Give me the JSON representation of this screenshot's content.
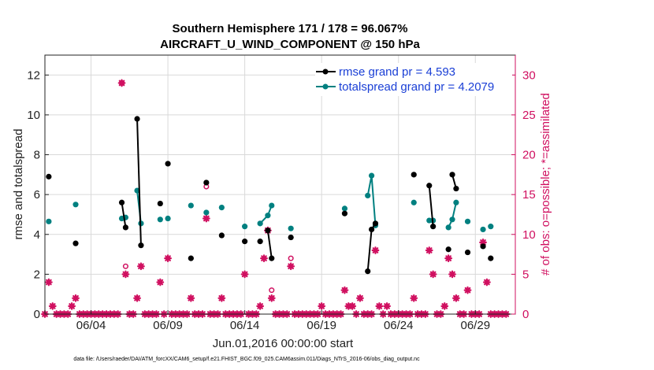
{
  "chart_data": {
    "type": "line",
    "title": [
      "Southern Hemisphere 171 / 178 = 96.067%",
      "AIRCRAFT_U_WIND_COMPONENT @ 150 hPa"
    ],
    "xlabel": "Jun.01,2016 00:00:00 start",
    "ylabel": "rmse and totalspread",
    "ylabel_right": "# of obs: o=possible; *=assimilated",
    "xlim": [
      1,
      31.6
    ],
    "ylim": [
      0,
      13
    ],
    "ylim_right": [
      0,
      32.5
    ],
    "x_tick_labels": [
      "06/04",
      "06/09",
      "06/14",
      "06/19",
      "06/24",
      "06/29"
    ],
    "x_tick_values": [
      4,
      9,
      14,
      19,
      24,
      29
    ],
    "y_ticks": [
      0,
      2,
      4,
      6,
      8,
      10,
      12
    ],
    "y_ticks_right": [
      0,
      5,
      10,
      15,
      20,
      25,
      30
    ],
    "footnote": "data file: /Users/raeder/DAI/ATM_forcXX/CAM6_setup/f.e21.FHIST_BGC.f09_025.CAM6assim.011/Diags_NTrS_2016-06/obs_diag_output.nc",
    "colors": {
      "rmse": "#000000",
      "spread": "#008080",
      "obs": "#d01060"
    },
    "series": [
      {
        "name": "rmse grand pr = 4.593",
        "key": "rmse",
        "points": [
          [
            1.25,
            6.9
          ],
          [
            3,
            3.55
          ],
          [
            6,
            5.6
          ],
          [
            6.25,
            4.35
          ],
          [
            7,
            9.8
          ],
          [
            7.25,
            3.45
          ],
          [
            8.5,
            5.55
          ],
          [
            9,
            7.55
          ],
          [
            10.5,
            2.8
          ],
          [
            11.5,
            6.6
          ],
          [
            12.5,
            3.95
          ],
          [
            14,
            3.65
          ],
          [
            15,
            3.65
          ],
          [
            15.5,
            4.2
          ],
          [
            15.75,
            2.8
          ],
          [
            17,
            3.85
          ],
          [
            20.5,
            5.05
          ],
          [
            22,
            2.15
          ],
          [
            22.25,
            4.25
          ],
          [
            22.5,
            4.55
          ],
          [
            25,
            7.0
          ],
          [
            26,
            6.45
          ],
          [
            26.25,
            4.4
          ],
          [
            27.25,
            3.25
          ],
          [
            27.5,
            7.0
          ],
          [
            27.75,
            6.3
          ],
          [
            28.5,
            3.1
          ],
          [
            29.5,
            3.4
          ],
          [
            30,
            2.8
          ]
        ],
        "segments": [
          [
            [
              6,
              5.6
            ],
            [
              6.25,
              4.35
            ]
          ],
          [
            [
              7,
              9.8
            ],
            [
              7.25,
              3.45
            ]
          ],
          [
            [
              15.5,
              4.2
            ],
            [
              15.75,
              2.8
            ]
          ],
          [
            [
              22,
              2.15
            ],
            [
              22.25,
              4.25
            ],
            [
              22.5,
              4.55
            ]
          ],
          [
            [
              26,
              6.45
            ],
            [
              26.25,
              4.4
            ]
          ],
          [
            [
              27.5,
              7.0
            ],
            [
              27.75,
              6.3
            ]
          ]
        ]
      },
      {
        "name": "totalspread grand pr = 4.2079",
        "key": "spread",
        "points": [
          [
            1.25,
            4.65
          ],
          [
            3,
            5.5
          ],
          [
            6,
            4.8
          ],
          [
            6.25,
            4.85
          ],
          [
            7,
            6.2
          ],
          [
            7.25,
            4.55
          ],
          [
            8.5,
            4.75
          ],
          [
            9,
            4.8
          ],
          [
            10.5,
            5.45
          ],
          [
            11.5,
            5.1
          ],
          [
            12.5,
            5.35
          ],
          [
            14,
            4.4
          ],
          [
            15,
            4.55
          ],
          [
            15.5,
            4.95
          ],
          [
            15.75,
            5.45
          ],
          [
            17,
            4.3
          ],
          [
            20.5,
            5.3
          ],
          [
            22,
            5.95
          ],
          [
            22.25,
            6.95
          ],
          [
            22.5,
            4.45
          ],
          [
            25,
            5.6
          ],
          [
            26,
            4.7
          ],
          [
            26.25,
            4.7
          ],
          [
            27.25,
            4.35
          ],
          [
            27.5,
            4.75
          ],
          [
            27.75,
            5.6
          ],
          [
            28.5,
            4.65
          ],
          [
            29.5,
            4.25
          ],
          [
            30,
            4.4
          ]
        ],
        "segments": [
          [
            [
              6,
              4.8
            ],
            [
              6.25,
              4.85
            ]
          ],
          [
            [
              7,
              6.2
            ],
            [
              7.25,
              4.55
            ]
          ],
          [
            [
              15,
              4.55
            ],
            [
              15.5,
              4.95
            ],
            [
              15.75,
              5.45
            ]
          ],
          [
            [
              22,
              5.95
            ],
            [
              22.25,
              6.95
            ],
            [
              22.5,
              4.45
            ]
          ],
          [
            [
              26,
              4.7
            ],
            [
              26.25,
              4.7
            ]
          ],
          [
            [
              27.25,
              4.35
            ],
            [
              27.5,
              4.75
            ],
            [
              27.75,
              5.6
            ]
          ]
        ]
      },
      {
        "name": "possible obs count",
        "key": "possible",
        "points": [
          [
            6,
            29.0
          ],
          [
            6.25,
            6.0
          ],
          [
            11.5,
            16.0
          ],
          [
            15.75,
            3.0
          ],
          [
            17,
            7.0
          ]
        ]
      },
      {
        "name": "assimilated obs count",
        "key": "assimilated",
        "points": [
          [
            1,
            0
          ],
          [
            1.25,
            4.0
          ],
          [
            1.5,
            1.0
          ],
          [
            1.75,
            0
          ],
          [
            2,
            0
          ],
          [
            2.25,
            0
          ],
          [
            2.5,
            0
          ],
          [
            2.75,
            1.0
          ],
          [
            3,
            2.0
          ],
          [
            3.25,
            0
          ],
          [
            3.5,
            0
          ],
          [
            3.75,
            0
          ],
          [
            4,
            0
          ],
          [
            4.25,
            0
          ],
          [
            4.5,
            0
          ],
          [
            4.75,
            0
          ],
          [
            5,
            0
          ],
          [
            5.25,
            0
          ],
          [
            5.5,
            0
          ],
          [
            5.75,
            0
          ],
          [
            6,
            29.0
          ],
          [
            6.25,
            5.0
          ],
          [
            6.5,
            0
          ],
          [
            6.75,
            0
          ],
          [
            7,
            2.0
          ],
          [
            7.25,
            6.0
          ],
          [
            7.5,
            0
          ],
          [
            7.75,
            0
          ],
          [
            8,
            0
          ],
          [
            8.25,
            0
          ],
          [
            8.5,
            4.0
          ],
          [
            8.75,
            0
          ],
          [
            9,
            7.0
          ],
          [
            9.25,
            0
          ],
          [
            9.5,
            0
          ],
          [
            9.75,
            0
          ],
          [
            10,
            0
          ],
          [
            10.25,
            0
          ],
          [
            10.5,
            2.0
          ],
          [
            10.75,
            0
          ],
          [
            11,
            0
          ],
          [
            11.25,
            0
          ],
          [
            11.5,
            12.0
          ],
          [
            11.75,
            0
          ],
          [
            12,
            0
          ],
          [
            12.25,
            0
          ],
          [
            12.5,
            2.0
          ],
          [
            12.75,
            0
          ],
          [
            13,
            0
          ],
          [
            13.25,
            0
          ],
          [
            13.5,
            0
          ],
          [
            13.75,
            0
          ],
          [
            14,
            5.0
          ],
          [
            14.25,
            0
          ],
          [
            14.5,
            0
          ],
          [
            14.75,
            0
          ],
          [
            15,
            1.0
          ],
          [
            15.25,
            7.0
          ],
          [
            15.5,
            10.5
          ],
          [
            15.75,
            2.0
          ],
          [
            16,
            0
          ],
          [
            16.25,
            0
          ],
          [
            16.5,
            0
          ],
          [
            16.75,
            0
          ],
          [
            17,
            6.0
          ],
          [
            17.25,
            0
          ],
          [
            17.5,
            0
          ],
          [
            17.75,
            0
          ],
          [
            18,
            0
          ],
          [
            18.25,
            0
          ],
          [
            18.5,
            0
          ],
          [
            18.75,
            0
          ],
          [
            19,
            1.0
          ],
          [
            19.25,
            0
          ],
          [
            19.5,
            0
          ],
          [
            19.75,
            0
          ],
          [
            20,
            0
          ],
          [
            20.25,
            0
          ],
          [
            20.5,
            3.0
          ],
          [
            20.75,
            1.0
          ],
          [
            21,
            1.0
          ],
          [
            21.25,
            0
          ],
          [
            21.5,
            2.0
          ],
          [
            21.75,
            0
          ],
          [
            22,
            0
          ],
          [
            22.25,
            0
          ],
          [
            22.5,
            8.0
          ],
          [
            22.75,
            1.0
          ],
          [
            23,
            0
          ],
          [
            23.25,
            1.0
          ],
          [
            23.5,
            0
          ],
          [
            23.75,
            0
          ],
          [
            24,
            0
          ],
          [
            24.25,
            0
          ],
          [
            24.5,
            0
          ],
          [
            24.75,
            0
          ],
          [
            25,
            2.0
          ],
          [
            25.25,
            0
          ],
          [
            25.5,
            0
          ],
          [
            25.75,
            0
          ],
          [
            26,
            8.0
          ],
          [
            26.25,
            5.0
          ],
          [
            26.5,
            0
          ],
          [
            26.75,
            0
          ],
          [
            27,
            1.0
          ],
          [
            27.25,
            7.0
          ],
          [
            27.5,
            5.0
          ],
          [
            27.75,
            2.0
          ],
          [
            28,
            0
          ],
          [
            28.25,
            0
          ],
          [
            28.5,
            3.0
          ],
          [
            28.75,
            0
          ],
          [
            29,
            0
          ],
          [
            29.25,
            0
          ],
          [
            29.5,
            9.0
          ],
          [
            29.75,
            4.0
          ],
          [
            30,
            0
          ],
          [
            30.25,
            0
          ],
          [
            30.5,
            0
          ],
          [
            30.75,
            0
          ],
          [
            31,
            0
          ]
        ]
      }
    ],
    "legend_position": "top-right"
  }
}
